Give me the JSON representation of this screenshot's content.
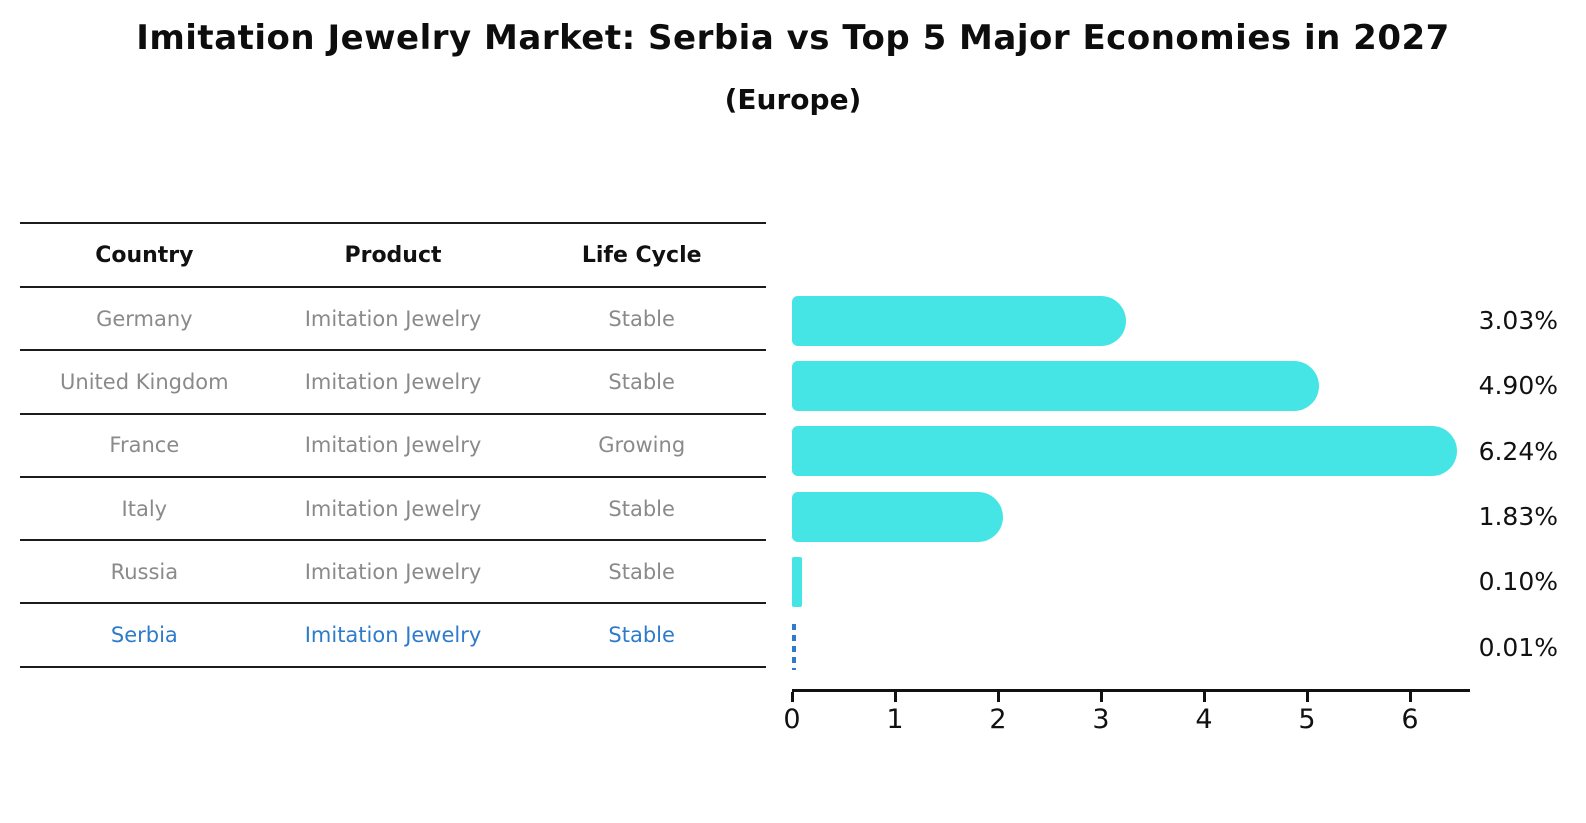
{
  "title": "Imitation Jewelry Market: Serbia vs Top 5 Major Economies in 2027",
  "subtitle": "(Europe)",
  "table": {
    "headers": [
      "Country",
      "Product",
      "Life Cycle"
    ],
    "rows": [
      {
        "country": "Germany",
        "product": "Imitation Jewelry",
        "life_cycle": "Stable",
        "highlight": false
      },
      {
        "country": "United Kingdom",
        "product": "Imitation Jewelry",
        "life_cycle": "Stable",
        "highlight": false
      },
      {
        "country": "France",
        "product": "Imitation Jewelry",
        "life_cycle": "Growing",
        "highlight": false
      },
      {
        "country": "Italy",
        "product": "Imitation Jewelry",
        "life_cycle": "Stable",
        "highlight": false
      },
      {
        "country": "Russia",
        "product": "Imitation Jewelry",
        "life_cycle": "Stable",
        "highlight": false
      },
      {
        "country": "Serbia",
        "product": "Imitation Jewelry",
        "life_cycle": "Stable",
        "highlight": true
      }
    ]
  },
  "chart_data": {
    "type": "bar",
    "orientation": "horizontal",
    "title": "Imitation Jewelry Market: Serbia vs Top 5 Major Economies in 2027",
    "subtitle": "(Europe)",
    "categories": [
      "Germany",
      "United Kingdom",
      "France",
      "Italy",
      "Russia",
      "Serbia"
    ],
    "values": [
      3.03,
      4.9,
      6.24,
      1.83,
      0.1,
      0.01
    ],
    "value_labels": [
      "3.03%",
      "4.90%",
      "6.24%",
      "1.83%",
      "0.10%",
      "0.01%"
    ],
    "x_ticks": [
      "0",
      "1",
      "2",
      "3",
      "4",
      "5",
      "6"
    ],
    "xlim": [
      0,
      6.56
    ],
    "grid": false,
    "bar_color": "#46e5e5",
    "highlight_color": "#2e7bcc",
    "highlight_index": 5
  }
}
